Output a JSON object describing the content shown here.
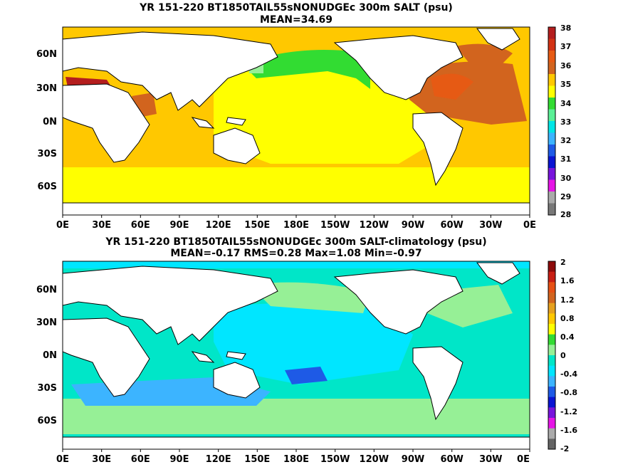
{
  "panel_top": {
    "title_line1": "YR 151-220 BT1850TAIL55sNONUDGEc 300m SALT (psu)",
    "title_line2": "MEAN=34.69",
    "colorbar_labels": [
      "38",
      "37",
      "36",
      "35",
      "34",
      "33",
      "32",
      "31",
      "30",
      "29",
      "28"
    ],
    "colorbar_colors": [
      "#b41e1e",
      "#d23214",
      "#e65a14",
      "#d2641e",
      "#ffc800",
      "#ffff00",
      "#32dc32",
      "#5af096",
      "#00e6e6",
      "#3cb4ff",
      "#1e5ae6",
      "#0a14d2",
      "#7814dc",
      "#e614e6",
      "#aaaaaa",
      "#787878"
    ]
  },
  "panel_bottom": {
    "title_line1": "YR 151-220 BT1850TAIL55sNONUDGEc 300m SALT-climatology (psu)",
    "title_line2": "MEAN=-0.17   RMS=0.28   Max=1.08   Min=-0.97",
    "colorbar_labels": [
      "2",
      "1.6",
      "1.2",
      "0.8",
      "0.4",
      "0",
      "-0.4",
      "-0.8",
      "-1.2",
      "-1.6",
      "-2"
    ],
    "colorbar_colors": [
      "#8c0a0a",
      "#c81e14",
      "#e65014",
      "#d2641e",
      "#e6a01e",
      "#ffc800",
      "#ffff00",
      "#32dc32",
      "#96f096",
      "#00e6c8",
      "#00e6ff",
      "#3cb4ff",
      "#1e5ae6",
      "#0a14d2",
      "#7814dc",
      "#e614e6",
      "#aaaaaa",
      "#646464"
    ]
  },
  "map": {
    "lat_labels": [
      "60N",
      "30N",
      "0N",
      "30S",
      "60S"
    ],
    "lon_labels": [
      "0E",
      "30E",
      "60E",
      "90E",
      "120E",
      "150E",
      "180E",
      "150W",
      "120W",
      "90W",
      "60W",
      "30W",
      "0E"
    ]
  }
}
